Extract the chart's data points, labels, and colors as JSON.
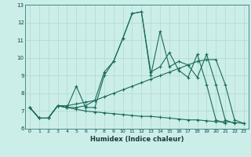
{
  "xlabel": "Humidex (Indice chaleur)",
  "bg_color": "#cceee8",
  "line_color": "#1a6b5a",
  "grid_color": "#b0d8d0",
  "xlim": [
    -0.5,
    23.5
  ],
  "ylim": [
    6,
    13
  ],
  "yticks": [
    6,
    7,
    8,
    9,
    10,
    11,
    12,
    13
  ],
  "xticks": [
    0,
    1,
    2,
    3,
    4,
    5,
    6,
    7,
    8,
    9,
    10,
    11,
    12,
    13,
    14,
    15,
    16,
    17,
    18,
    19,
    20,
    21,
    22,
    23
  ],
  "series": [
    [
      7.2,
      6.6,
      6.6,
      7.3,
      7.2,
      8.4,
      7.2,
      7.2,
      9.0,
      9.8,
      11.1,
      12.5,
      12.6,
      9.0,
      11.5,
      9.5,
      9.8,
      9.6,
      8.9,
      10.2,
      8.5,
      6.5,
      6.3,
      null
    ],
    [
      7.2,
      6.6,
      6.6,
      7.3,
      7.2,
      7.2,
      7.3,
      7.6,
      9.2,
      9.8,
      11.1,
      12.5,
      12.6,
      9.2,
      9.5,
      10.3,
      9.3,
      8.9,
      10.2,
      8.5,
      6.5,
      6.3,
      null,
      null
    ],
    [
      7.2,
      6.6,
      6.6,
      7.3,
      7.3,
      7.4,
      7.5,
      7.6,
      7.8,
      8.0,
      8.2,
      8.4,
      8.6,
      8.8,
      9.0,
      9.2,
      9.4,
      9.6,
      9.8,
      9.9,
      9.9,
      8.5,
      6.5,
      6.3
    ],
    [
      7.2,
      6.6,
      6.6,
      7.3,
      7.2,
      7.1,
      7.0,
      6.95,
      6.9,
      6.85,
      6.8,
      6.75,
      6.7,
      6.7,
      6.65,
      6.6,
      6.55,
      6.5,
      6.5,
      6.45,
      6.4,
      6.4,
      6.35,
      6.3
    ]
  ]
}
